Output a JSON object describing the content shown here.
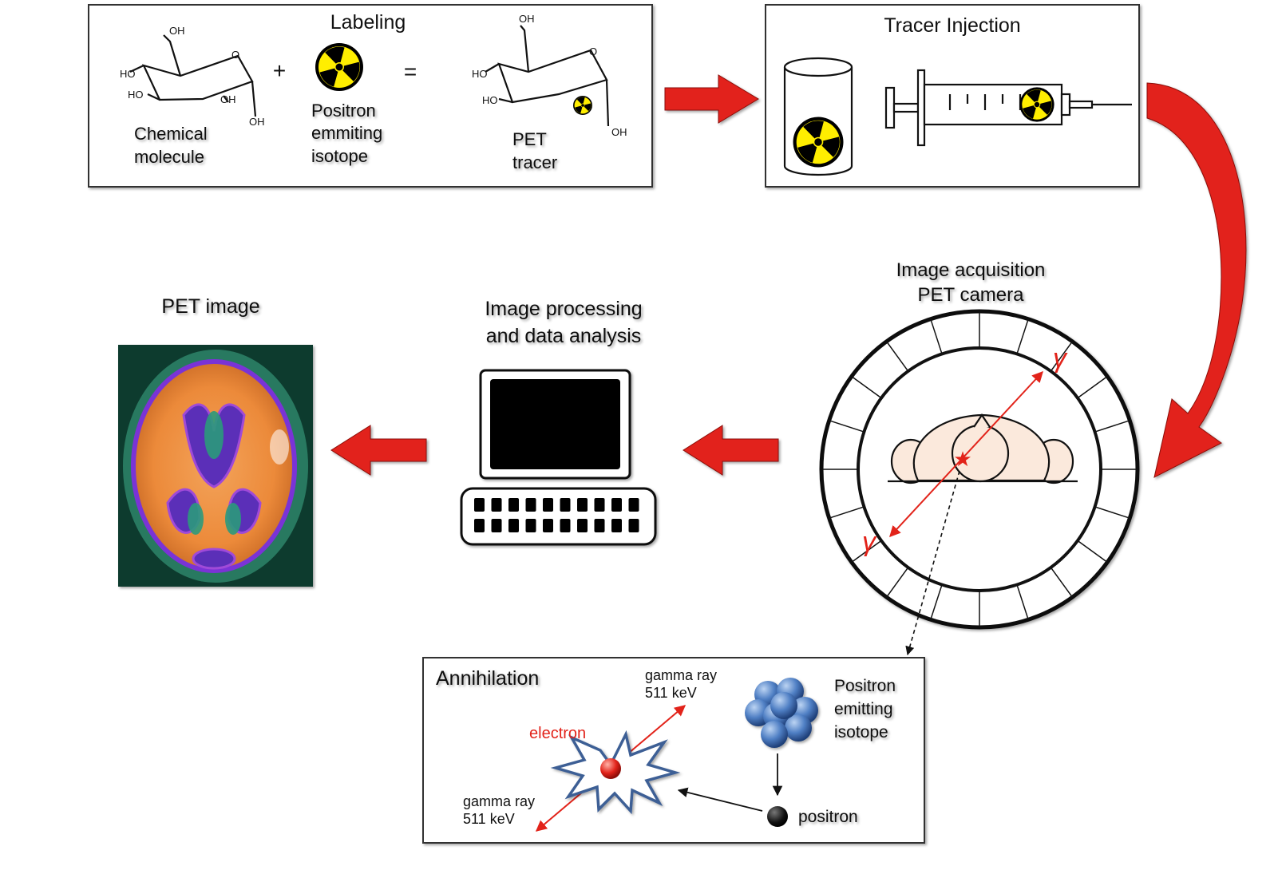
{
  "labeling": {
    "title": "Labeling",
    "plus": "+",
    "equals": "=",
    "molecule": {
      "line1": "Chemical",
      "line2": "molecule"
    },
    "isotope": {
      "line1": "Positron",
      "line2": "emmiting",
      "line3": "isotope"
    },
    "tracer": {
      "line1": "PET",
      "line2": "tracer"
    },
    "groups": {
      "oh": "OH",
      "ho": "HO"
    }
  },
  "injection": {
    "title": "Tracer Injection"
  },
  "acquisition": {
    "line1": "Image acquisition",
    "line2": "PET camera",
    "gamma": "γ"
  },
  "processing": {
    "line1": "Image processing",
    "line2": "and data analysis"
  },
  "pet_image": {
    "title": "PET image"
  },
  "annihilation": {
    "title": "Annihilation",
    "gamma_top": {
      "line1": "gamma ray",
      "line2": "511 keV"
    },
    "gamma_bottom": {
      "line1": "gamma ray",
      "line2": "511 keV"
    },
    "electron": "electron",
    "isotope": {
      "line1": "Positron",
      "line2": "emitting",
      "line3": "isotope"
    },
    "positron": "positron"
  },
  "colors": {
    "arrow": "#e2231a",
    "radiation_yellow": "#ffee00",
    "screen": "#000000",
    "accent_red": "#e2231a"
  }
}
